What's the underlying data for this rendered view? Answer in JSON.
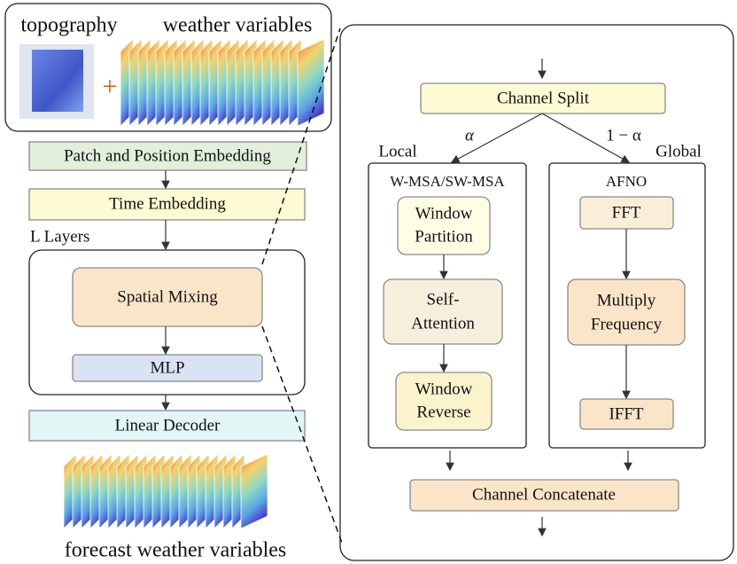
{
  "input": {
    "topography": "topography",
    "weather_variables": "weather variables",
    "plus": "+"
  },
  "encoder": {
    "patch_embedding": "Patch and Position Embedding",
    "time_embedding": "Time Embedding",
    "layers": "L Layers",
    "spatial_mixing": "Spatial Mixing",
    "mlp": "MLP",
    "decoder": "Linear Decoder"
  },
  "output": {
    "label": "forecast weather variables"
  },
  "spatial_mixing_detail": {
    "channel_split": "Channel Split",
    "alpha": "α",
    "one_minus_alpha": "1 − α",
    "local": {
      "label": "Local",
      "title": "W-MSA/SW-MSA",
      "window_partition": [
        "Window",
        "Partition"
      ],
      "self_attention": [
        "Self-",
        "Attention"
      ],
      "window_reverse": [
        "Window",
        "Reverse"
      ]
    },
    "global": {
      "label": "Global",
      "title": "AFNO",
      "fft": "FFT",
      "multiply_frequency": [
        "Multiply",
        "Frequency"
      ],
      "ifft": "IFFT"
    },
    "channel_concatenate": "Channel Concatenate"
  }
}
